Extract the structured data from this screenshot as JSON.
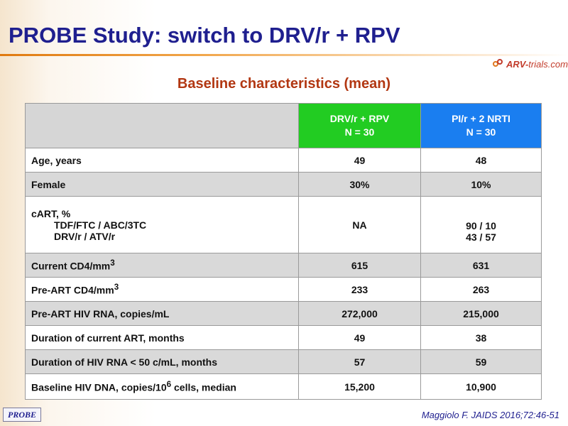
{
  "slide": {
    "title": "PROBE Study: switch to DRV/r + RPV",
    "subtitle": "Baseline characteristics (mean)",
    "logo_text_main": "ARV-",
    "logo_text_rest": "trials.com",
    "badge": "PROBE",
    "citation": "Maggiolo F. JAIDS 2016;72:46-51"
  },
  "table": {
    "columns": [
      {
        "line1": "DRV/r + RPV",
        "line2": "N = 30"
      },
      {
        "line1": "PI/r + 2 NRTI",
        "line2": "N = 30"
      }
    ],
    "rows": {
      "age": {
        "label": "Age, years",
        "v1": "49",
        "v2": "48"
      },
      "female": {
        "label": "Female",
        "v1": "30%",
        "v2": "10%"
      },
      "cart": {
        "label": "cART, %",
        "sub1": "TDF/FTC / ABC/3TC",
        "sub2": "DRV/r / ATV/r",
        "v1": "NA",
        "v2a": "90 / 10",
        "v2b": "43 / 57"
      },
      "cd4": {
        "label": "Current CD4/mm",
        "sup": "3",
        "v1": "615",
        "v2": "631"
      },
      "pre_cd4": {
        "label": "Pre-ART CD4/mm",
        "sup": "3",
        "v1": "233",
        "v2": "263"
      },
      "pre_rna": {
        "label": "Pre-ART HIV RNA,  copies/mL",
        "v1": "272,000",
        "v2": "215,000"
      },
      "dur_art": {
        "label": "Duration of current ART, months",
        "v1": "49",
        "v2": "38"
      },
      "dur_rna": {
        "label": "Duration of HIV RNA < 50 c/mL, months",
        "v1": "57",
        "v2": "59"
      },
      "dna": {
        "label_a": "Baseline HIV DNA, copies/10",
        "sup": "6",
        "label_b": " cells, median",
        "v1": "15,200",
        "v2": "10,900"
      }
    }
  },
  "colors": {
    "title": "#1f1f8f",
    "subtitle": "#b23712",
    "group1_header": "#22cc22",
    "group2_header": "#1a7ef0",
    "row_shade": "#d9d9d9"
  }
}
